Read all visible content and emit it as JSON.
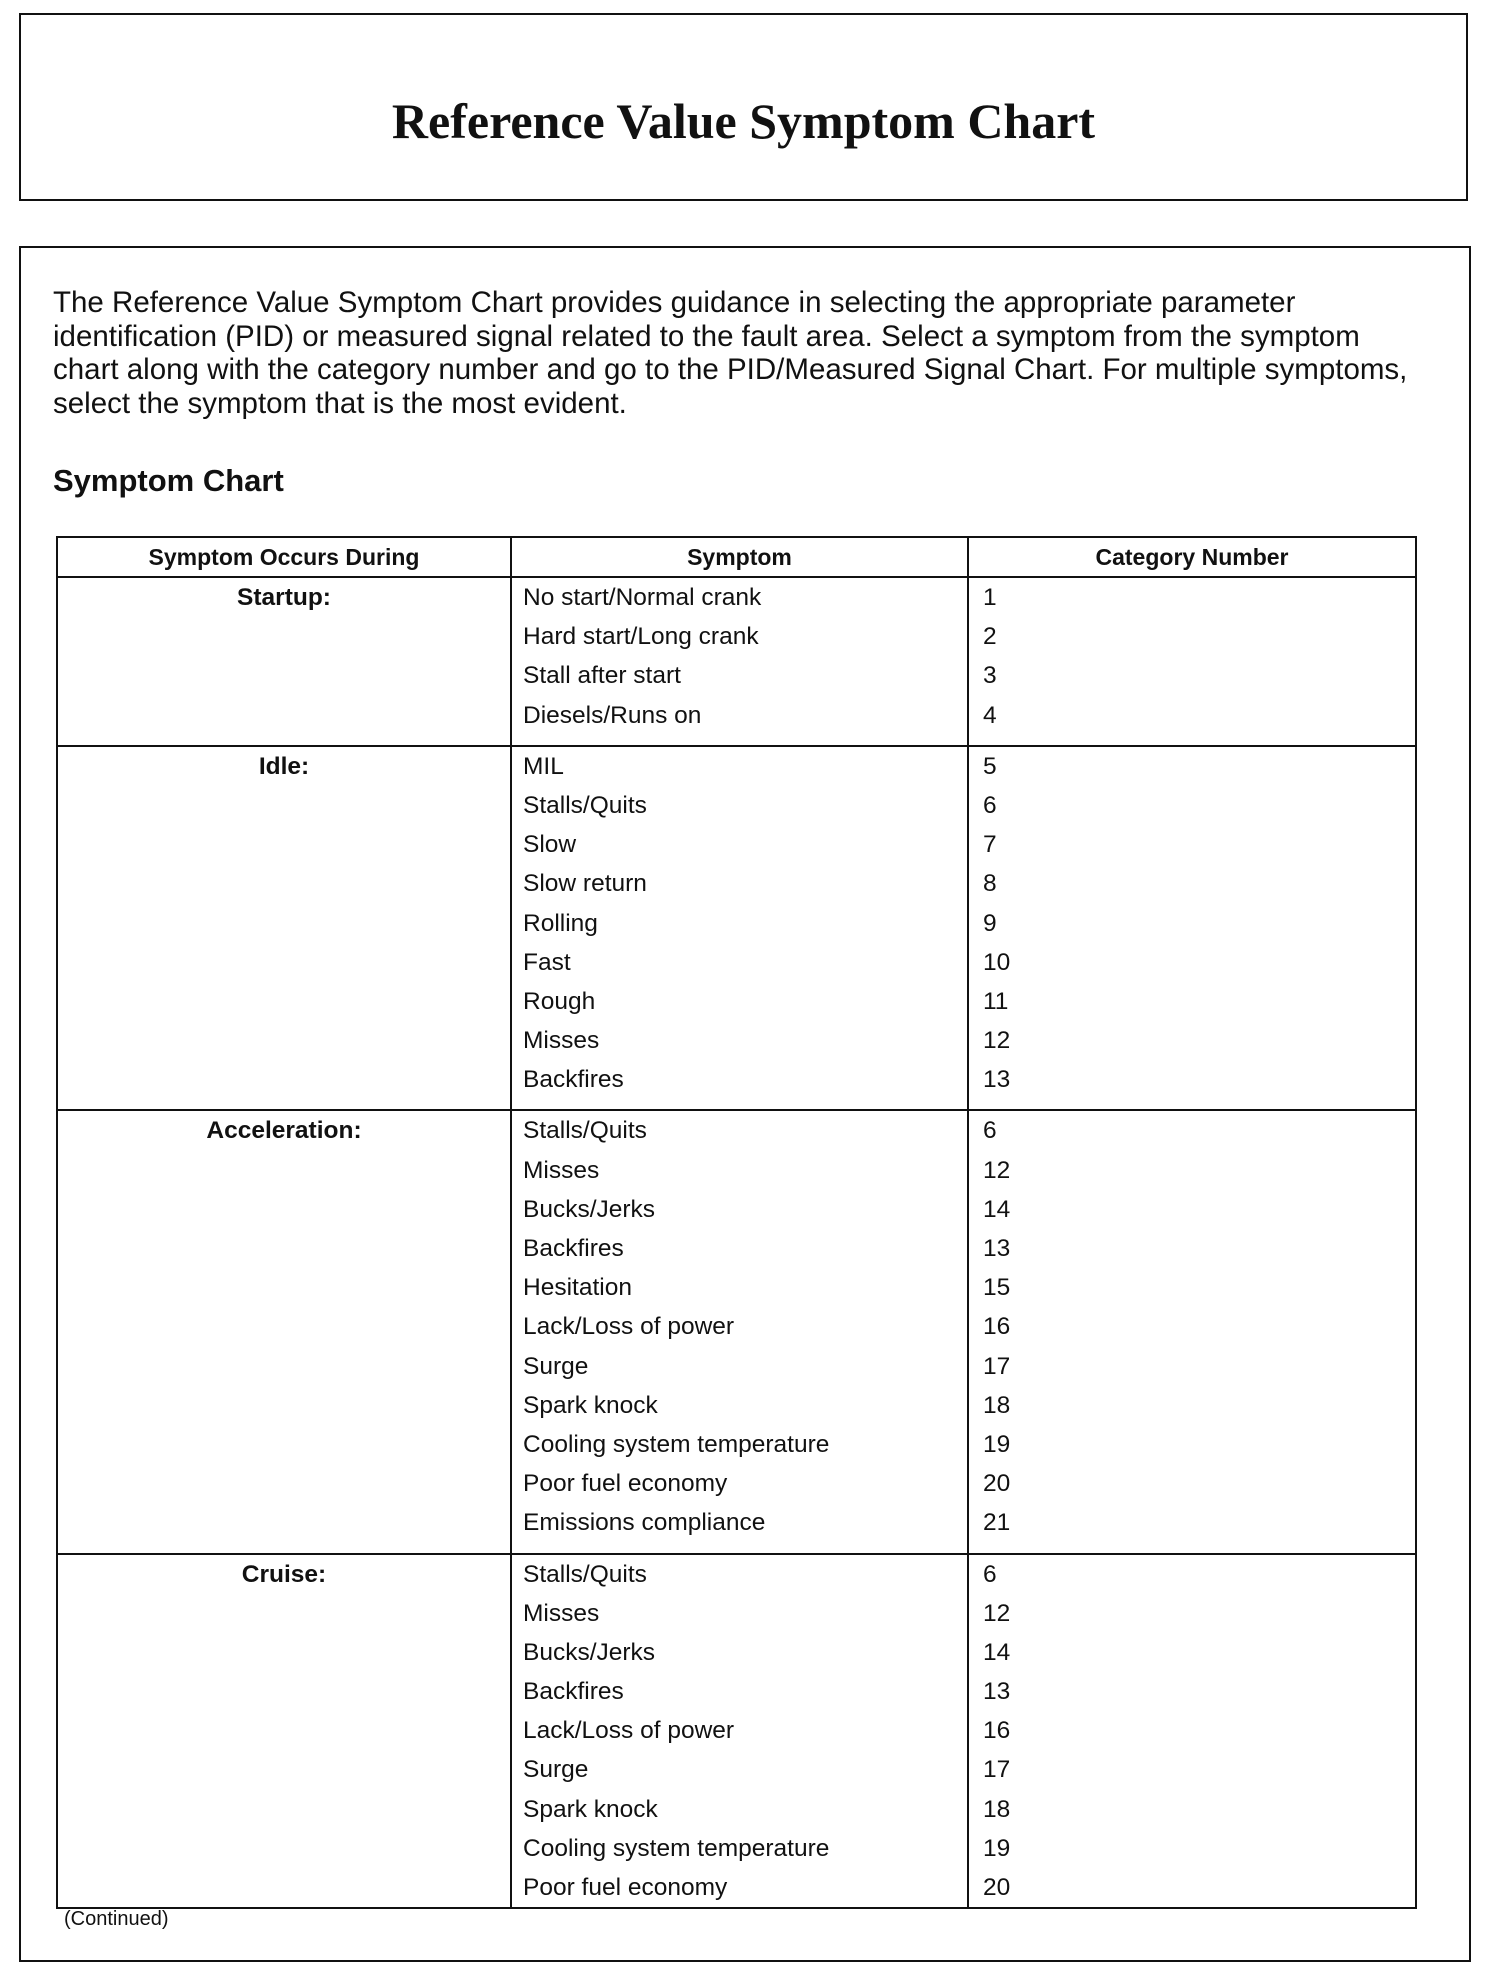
{
  "title": "Reference Value Symptom Chart",
  "intro": "The Reference Value Symptom Chart provides guidance in selecting the appropriate parameter identification (PID) or measured signal related to the fault area. Select a symptom from the symptom chart along with the category number and go to the PID/Measured Signal Chart. For multiple symptoms, select the symptom that is the most evident.",
  "heading": "Symptom Chart",
  "table": {
    "headers": [
      "Symptom Occurs During",
      "Symptom",
      "Category Number"
    ],
    "groups": [
      {
        "label": "Startup:",
        "rows": [
          [
            "No start/Normal crank",
            "1"
          ],
          [
            "Hard start/Long crank",
            "2"
          ],
          [
            "Stall after start",
            "3"
          ],
          [
            "Diesels/Runs on",
            "4"
          ]
        ]
      },
      {
        "label": "Idle:",
        "rows": [
          [
            "MIL",
            "5"
          ],
          [
            "Stalls/Quits",
            "6"
          ],
          [
            "Slow",
            "7"
          ],
          [
            "Slow return",
            "8"
          ],
          [
            "Rolling",
            "9"
          ],
          [
            "Fast",
            "10"
          ],
          [
            "Rough",
            "11"
          ],
          [
            "Misses",
            "12"
          ],
          [
            "Backfires",
            "13"
          ]
        ]
      },
      {
        "label": "Acceleration:",
        "rows": [
          [
            "Stalls/Quits",
            "6"
          ],
          [
            "Misses",
            "12"
          ],
          [
            "Bucks/Jerks",
            "14"
          ],
          [
            "Backfires",
            "13"
          ],
          [
            "Hesitation",
            "15"
          ],
          [
            "Lack/Loss of power",
            "16"
          ],
          [
            "Surge",
            "17"
          ],
          [
            "Spark knock",
            "18"
          ],
          [
            "Cooling system temperature",
            "19"
          ],
          [
            "Poor fuel economy",
            "20"
          ],
          [
            "Emissions compliance",
            "21"
          ]
        ]
      },
      {
        "label": "Cruise:",
        "rows": [
          [
            "Stalls/Quits",
            "6"
          ],
          [
            "Misses",
            "12"
          ],
          [
            "Bucks/Jerks",
            "14"
          ],
          [
            "Backfires",
            "13"
          ],
          [
            "Lack/Loss of power",
            "16"
          ],
          [
            "Surge",
            "17"
          ],
          [
            "Spark knock",
            "18"
          ],
          [
            "Cooling system temperature",
            "19"
          ],
          [
            "Poor fuel economy",
            "20"
          ]
        ]
      }
    ]
  },
  "continued": "(Continued)"
}
